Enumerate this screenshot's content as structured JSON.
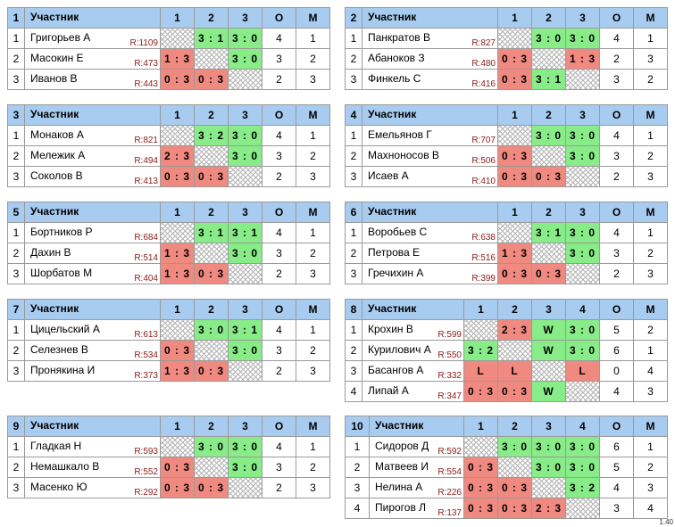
{
  "header": {
    "player": "Участник",
    "points": "О",
    "place": "М"
  },
  "groups": [
    {
      "number": "1",
      "cols": [
        "1",
        "2",
        "3"
      ],
      "rows": [
        {
          "n": "1",
          "name": "Григорьев А",
          "rating": "R:1109",
          "cells": [
            "",
            "3 : 1",
            "3 : 0"
          ],
          "points": "4",
          "place": "1"
        },
        {
          "n": "2",
          "name": "Масокин Е",
          "rating": "R:473",
          "cells": [
            "1 : 3",
            "",
            "3 : 0"
          ],
          "points": "3",
          "place": "2"
        },
        {
          "n": "3",
          "name": "Иванов В",
          "rating": "R:443",
          "cells": [
            "0 : 3",
            "0 : 3",
            ""
          ],
          "points": "2",
          "place": "3"
        }
      ]
    },
    {
      "number": "2",
      "cols": [
        "1",
        "2",
        "3"
      ],
      "rows": [
        {
          "n": "1",
          "name": "Панкратов В",
          "rating": "R:827",
          "cells": [
            "",
            "3 : 0",
            "3 : 0"
          ],
          "points": "4",
          "place": "1"
        },
        {
          "n": "2",
          "name": "Абаноков З",
          "rating": "R:480",
          "cells": [
            "0 : 3",
            "",
            "1 : 3"
          ],
          "points": "2",
          "place": "3"
        },
        {
          "n": "3",
          "name": "Финкель С",
          "rating": "R:416",
          "cells": [
            "0 : 3",
            "3 : 1",
            ""
          ],
          "points": "3",
          "place": "2"
        }
      ]
    },
    {
      "number": "3",
      "cols": [
        "1",
        "2",
        "3"
      ],
      "rows": [
        {
          "n": "1",
          "name": "Монаков А",
          "rating": "R:821",
          "cells": [
            "",
            "3 : 2",
            "3 : 0"
          ],
          "points": "4",
          "place": "1"
        },
        {
          "n": "2",
          "name": "Мележик А",
          "rating": "R:494",
          "cells": [
            "2 : 3",
            "",
            "3 : 0"
          ],
          "points": "3",
          "place": "2"
        },
        {
          "n": "3",
          "name": "Соколов В",
          "rating": "R:413",
          "cells": [
            "0 : 3",
            "0 : 3",
            ""
          ],
          "points": "2",
          "place": "3"
        }
      ]
    },
    {
      "number": "4",
      "cols": [
        "1",
        "2",
        "3"
      ],
      "rows": [
        {
          "n": "1",
          "name": "Емельянов Г",
          "rating": "R:707",
          "cells": [
            "",
            "3 : 0",
            "3 : 0"
          ],
          "points": "4",
          "place": "1"
        },
        {
          "n": "2",
          "name": "Махноносов В",
          "rating": "R:506",
          "cells": [
            "0 : 3",
            "",
            "3 : 0"
          ],
          "points": "3",
          "place": "2"
        },
        {
          "n": "3",
          "name": "Исаев А",
          "rating": "R:410",
          "cells": [
            "0 : 3",
            "0 : 3",
            ""
          ],
          "points": "2",
          "place": "3"
        }
      ]
    },
    {
      "number": "5",
      "cols": [
        "1",
        "2",
        "3"
      ],
      "rows": [
        {
          "n": "1",
          "name": "Бортников Р",
          "rating": "R:684",
          "cells": [
            "",
            "3 : 1",
            "3 : 1"
          ],
          "points": "4",
          "place": "1"
        },
        {
          "n": "2",
          "name": "Дахин В",
          "rating": "R:514",
          "cells": [
            "1 : 3",
            "",
            "3 : 0"
          ],
          "points": "3",
          "place": "2"
        },
        {
          "n": "3",
          "name": "Шорбатов М",
          "rating": "R:404",
          "cells": [
            "1 : 3",
            "0 : 3",
            ""
          ],
          "points": "2",
          "place": "3"
        }
      ]
    },
    {
      "number": "6",
      "cols": [
        "1",
        "2",
        "3"
      ],
      "rows": [
        {
          "n": "1",
          "name": "Воробьев С",
          "rating": "R:638",
          "cells": [
            "",
            "3 : 1",
            "3 : 0"
          ],
          "points": "4",
          "place": "1"
        },
        {
          "n": "2",
          "name": "Петрова Е",
          "rating": "R:516",
          "cells": [
            "1 : 3",
            "",
            "3 : 0"
          ],
          "points": "3",
          "place": "2"
        },
        {
          "n": "3",
          "name": "Гречихин А",
          "rating": "R:399",
          "cells": [
            "0 : 3",
            "0 : 3",
            ""
          ],
          "points": "2",
          "place": "3"
        }
      ]
    },
    {
      "number": "7",
      "cols": [
        "1",
        "2",
        "3"
      ],
      "rows": [
        {
          "n": "1",
          "name": "Цицельский А",
          "rating": "R:613",
          "cells": [
            "",
            "3 : 0",
            "3 : 1"
          ],
          "points": "4",
          "place": "1"
        },
        {
          "n": "2",
          "name": "Селезнев В",
          "rating": "R:534",
          "cells": [
            "0 : 3",
            "",
            "3 : 0"
          ],
          "points": "3",
          "place": "2"
        },
        {
          "n": "3",
          "name": "Пронякина И",
          "rating": "R:373",
          "cells": [
            "1 : 3",
            "0 : 3",
            ""
          ],
          "points": "2",
          "place": "3"
        }
      ]
    },
    {
      "number": "8",
      "cols": [
        "1",
        "2",
        "3",
        "4"
      ],
      "rows": [
        {
          "n": "1",
          "name": "Крохин В",
          "rating": "R:599",
          "cells": [
            "",
            "2 : 3",
            "W",
            "3 : 0"
          ],
          "points": "5",
          "place": "2"
        },
        {
          "n": "2",
          "name": "Курилович А",
          "rating": "R:550",
          "cells": [
            "3 : 2",
            "",
            "W",
            "3 : 0"
          ],
          "points": "6",
          "place": "1"
        },
        {
          "n": "3",
          "name": "Басангов А",
          "rating": "R:332",
          "cells": [
            "L",
            "L",
            "",
            "L"
          ],
          "points": "0",
          "place": "4"
        },
        {
          "n": "4",
          "name": "Липай А",
          "rating": "R:347",
          "cells": [
            "0 : 3",
            "0 : 3",
            "W",
            ""
          ],
          "points": "4",
          "place": "3"
        }
      ]
    },
    {
      "number": "9",
      "cols": [
        "1",
        "2",
        "3"
      ],
      "rows": [
        {
          "n": "1",
          "name": "Гладкая Н",
          "rating": "R:593",
          "cells": [
            "",
            "3 : 0",
            "3 : 0"
          ],
          "points": "4",
          "place": "1"
        },
        {
          "n": "2",
          "name": "Немашкало В",
          "rating": "R:552",
          "cells": [
            "0 : 3",
            "",
            "3 : 0"
          ],
          "points": "3",
          "place": "2"
        },
        {
          "n": "3",
          "name": "Масенко Ю",
          "rating": "R:292",
          "cells": [
            "0 : 3",
            "0 : 3",
            ""
          ],
          "points": "2",
          "place": "3"
        }
      ]
    },
    {
      "number": "10",
      "cols": [
        "1",
        "2",
        "3",
        "4"
      ],
      "rows": [
        {
          "n": "1",
          "name": "Сидоров Д",
          "rating": "R:592",
          "cells": [
            "",
            "3 : 0",
            "3 : 0",
            "3 : 0"
          ],
          "points": "6",
          "place": "1"
        },
        {
          "n": "2",
          "name": "Матвеев И",
          "rating": "R:554",
          "cells": [
            "0 : 3",
            "",
            "3 : 0",
            "3 : 0"
          ],
          "points": "5",
          "place": "2"
        },
        {
          "n": "3",
          "name": "Нелина А",
          "rating": "R:226",
          "cells": [
            "0 : 3",
            "0 : 3",
            "",
            "3 : 2"
          ],
          "points": "4",
          "place": "3"
        },
        {
          "n": "4",
          "name": "Пирогов Л",
          "rating": "R:137",
          "cells": [
            "0 : 3",
            "0 : 3",
            "2 : 3",
            ""
          ],
          "points": "3",
          "place": "4"
        }
      ]
    }
  ],
  "footer": {
    "timer": "1.40"
  },
  "colors": {
    "header_bg": "#a8ccf0",
    "win_bg": "#88ec88",
    "loss_bg": "#f08a80",
    "rating": "#8b1a1a"
  }
}
